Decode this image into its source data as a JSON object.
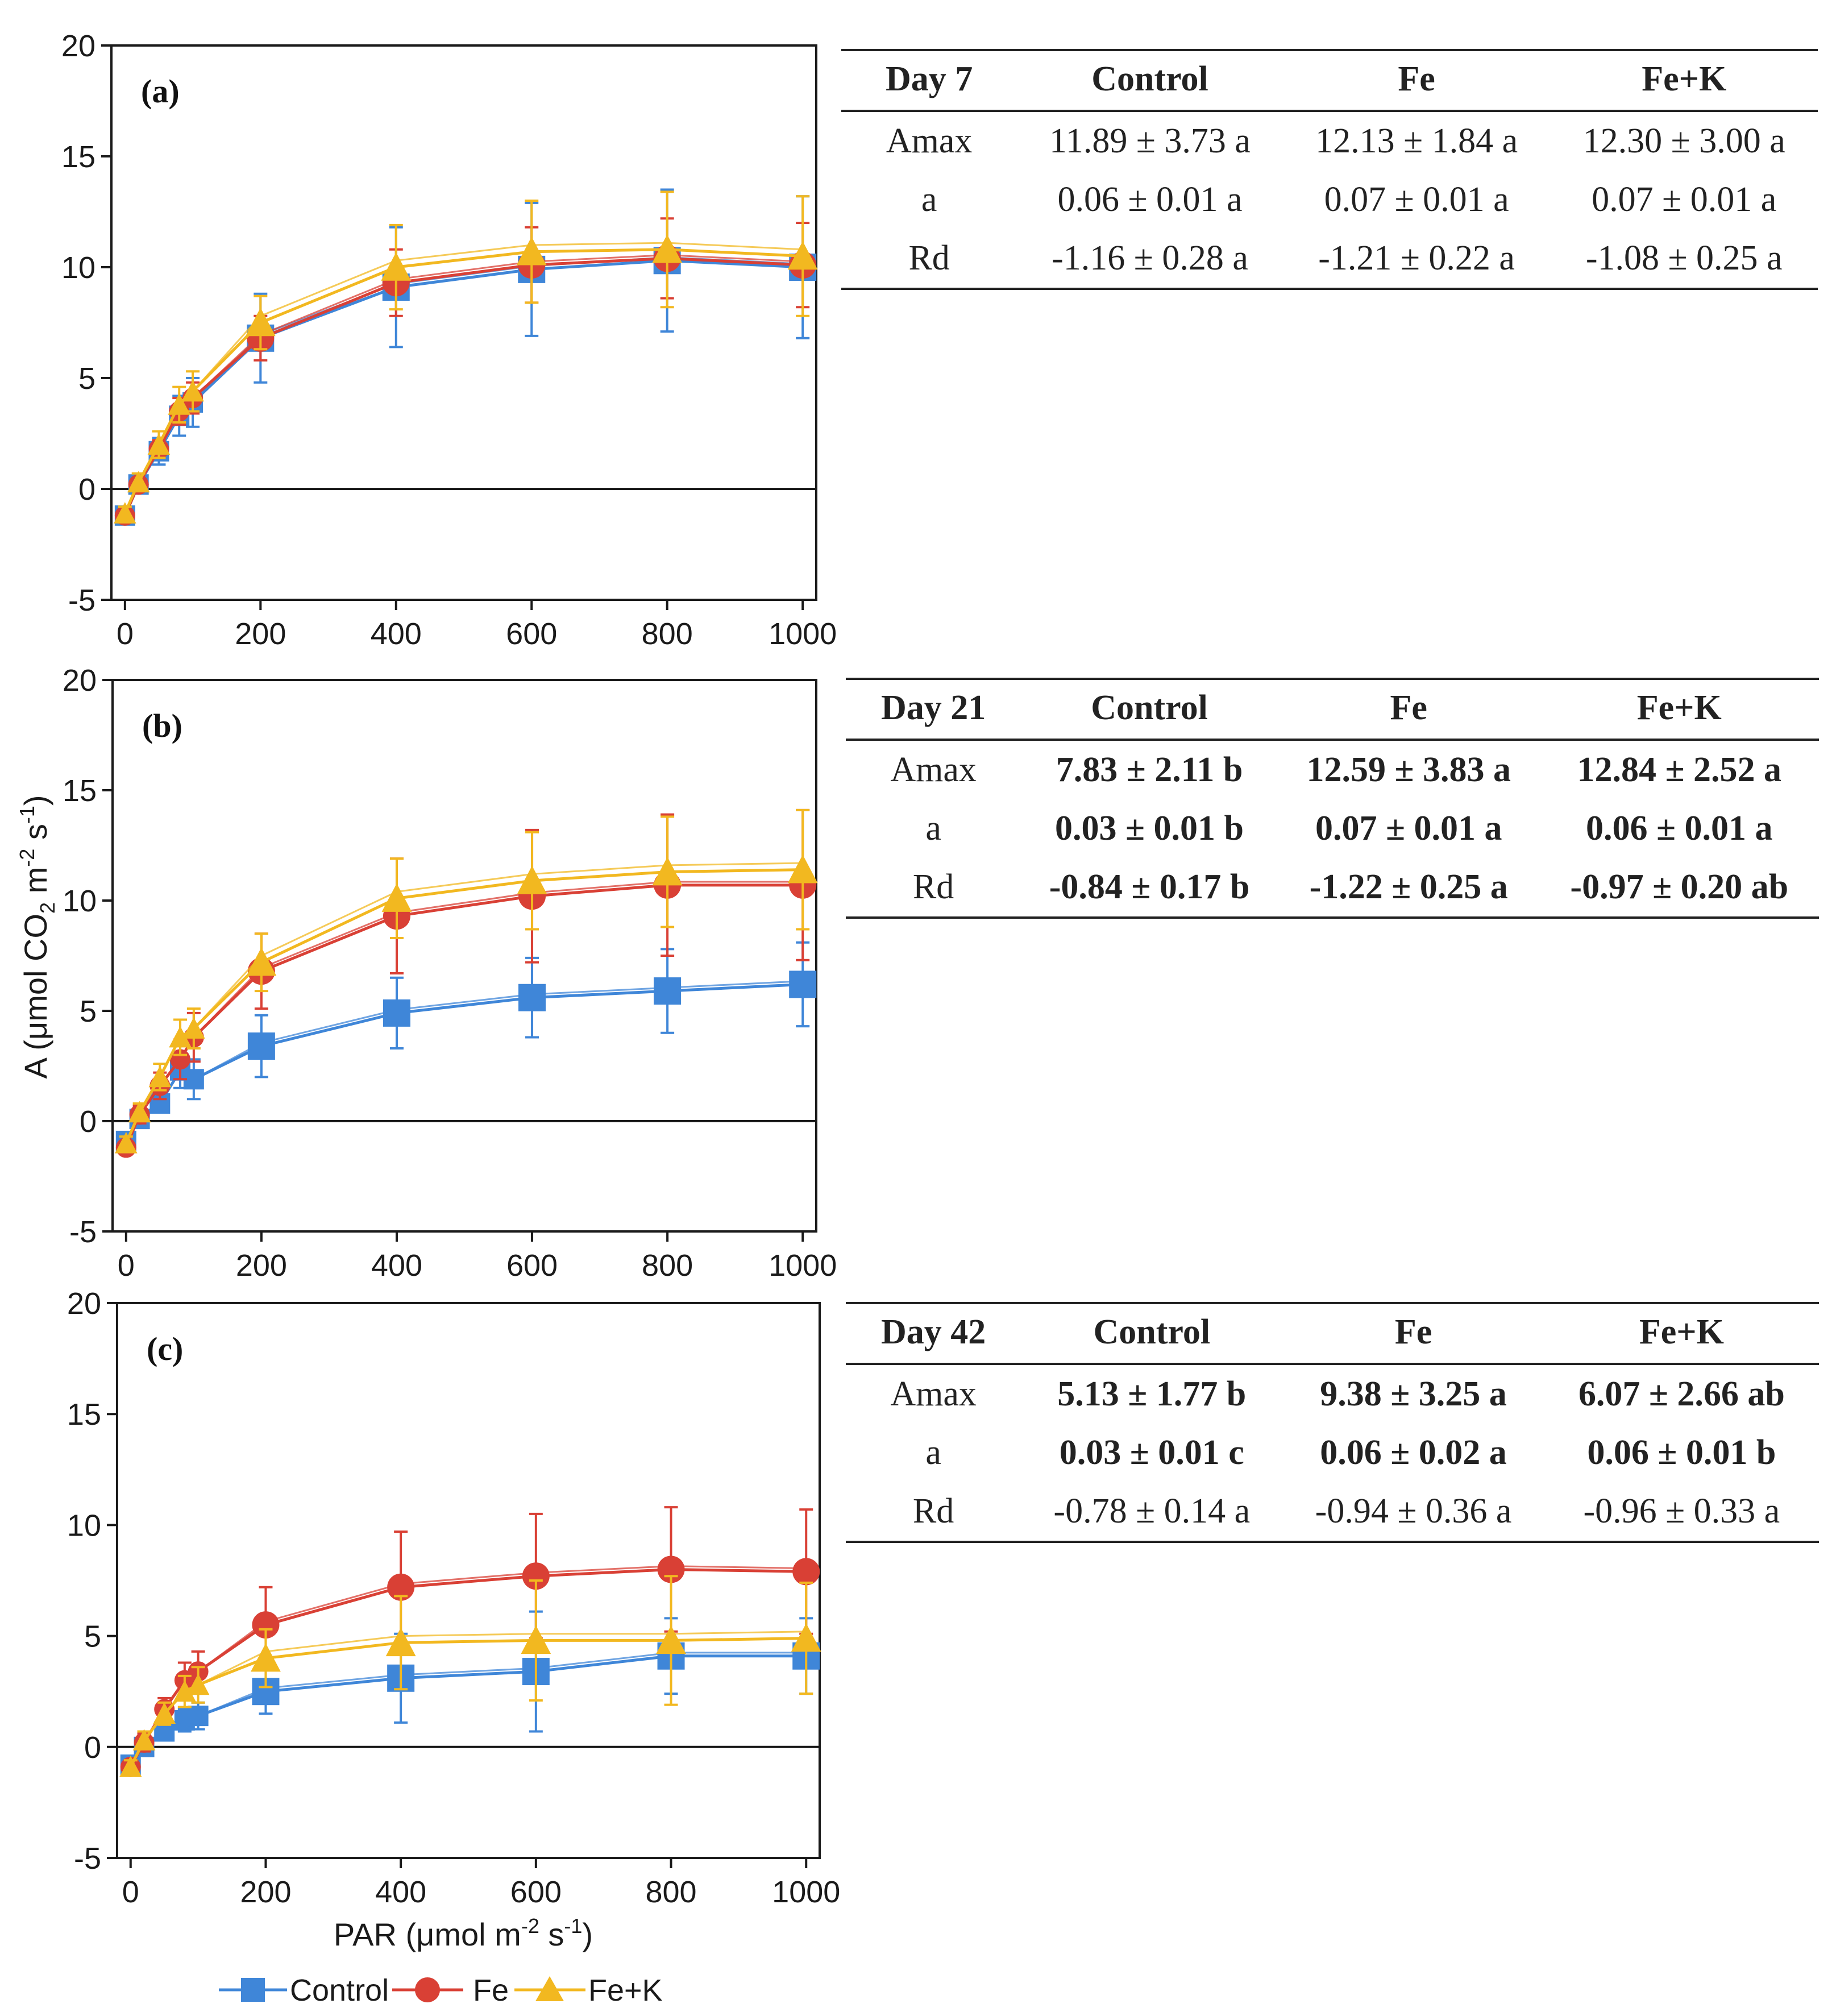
{
  "colors": {
    "control": "#3f86d8",
    "fe": "#d94035",
    "fek": "#f2b820",
    "axis": "#1a1a1a"
  },
  "chart_data": [
    {
      "type": "line",
      "panel_label": "(a)",
      "xlim": [
        -20,
        1020
      ],
      "ylim": [
        -5,
        20
      ],
      "x_ticks": [
        "0",
        "200",
        "400",
        "600",
        "800",
        "1000"
      ],
      "y_ticks": [
        "-5",
        "0",
        "5",
        "10",
        "15",
        "20"
      ],
      "x": [
        0,
        20,
        50,
        80,
        100,
        200,
        400,
        600,
        800,
        1000
      ],
      "series": [
        {
          "name": "Control",
          "values": [
            -1.2,
            0.2,
            1.7,
            3.3,
            3.9,
            6.8,
            9.1,
            9.9,
            10.3,
            10.0
          ],
          "errors": [
            0.3,
            0.4,
            0.6,
            0.9,
            1.1,
            2.0,
            2.7,
            3.0,
            3.2,
            3.2
          ]
        },
        {
          "name": "Fe",
          "values": [
            -1.2,
            0.2,
            1.8,
            3.5,
            4.1,
            6.8,
            9.3,
            10.1,
            10.4,
            10.1
          ],
          "errors": [
            0.2,
            0.3,
            0.4,
            0.6,
            0.7,
            1.0,
            1.5,
            1.7,
            1.8,
            1.9
          ]
        },
        {
          "name": "Fe+K",
          "values": [
            -1.1,
            0.3,
            2.0,
            3.8,
            4.4,
            7.5,
            10.0,
            10.7,
            10.8,
            10.5
          ],
          "errors": [
            0.3,
            0.4,
            0.6,
            0.8,
            0.9,
            1.2,
            1.9,
            2.3,
            2.6,
            2.7
          ]
        }
      ],
      "table": {
        "headers": [
          "Day 7",
          "Control",
          "Fe",
          "Fe+K"
        ],
        "rows": [
          [
            "Amax",
            "11.89 ± 3.73 a",
            "12.13 ± 1.84 a",
            "12.30 ± 3.00 a"
          ],
          [
            "a",
            "0.06 ± 0.01 a",
            "0.07 ± 0.01 a",
            "0.07 ± 0.01 a"
          ],
          [
            "Rd",
            "-1.16 ± 0.28 a",
            "-1.21 ± 0.22 a",
            "-1.08 ± 0.25 a"
          ]
        ]
      }
    },
    {
      "type": "line",
      "panel_label": "(b)",
      "xlim": [
        -20,
        1020
      ],
      "ylim": [
        -5,
        20
      ],
      "x_ticks": [
        "0",
        "200",
        "400",
        "600",
        "800",
        "1000"
      ],
      "y_ticks": [
        "-5",
        "0",
        "5",
        "10",
        "15",
        "20"
      ],
      "ylabel": "A (μmol CO2 m-2 s-1)",
      "x": [
        0,
        20,
        50,
        80,
        100,
        200,
        400,
        600,
        800,
        1000
      ],
      "series": [
        {
          "name": "Control",
          "values": [
            -0.9,
            0.1,
            0.8,
            2.3,
            1.9,
            3.4,
            4.9,
            5.6,
            5.9,
            6.2
          ],
          "errors": [
            0.2,
            0.3,
            0.4,
            0.8,
            0.9,
            1.4,
            1.6,
            1.8,
            1.9,
            1.9
          ]
        },
        {
          "name": "Fe",
          "values": [
            -1.2,
            0.3,
            1.6,
            2.8,
            3.8,
            6.8,
            9.3,
            10.2,
            10.7,
            10.7
          ],
          "errors": [
            0.3,
            0.4,
            0.6,
            0.9,
            1.1,
            1.7,
            2.6,
            3.0,
            3.2,
            3.4
          ]
        },
        {
          "name": "Fe+K",
          "values": [
            -1.0,
            0.4,
            2.0,
            3.8,
            4.2,
            7.2,
            10.1,
            10.9,
            11.3,
            11.4
          ],
          "errors": [
            0.3,
            0.4,
            0.6,
            0.8,
            0.9,
            1.3,
            1.8,
            2.2,
            2.5,
            2.7
          ]
        }
      ],
      "table": {
        "headers": [
          "Day 21",
          "Control",
          "Fe",
          "Fe+K"
        ],
        "rows": [
          [
            "Amax",
            "7.83 ± 2.11 b",
            "12.59 ± 3.83 a",
            "12.84 ± 2.52 a"
          ],
          [
            "a",
            "0.03 ± 0.01 b",
            "0.07 ± 0.01 a",
            "0.06 ± 0.01 a"
          ],
          [
            "Rd",
            "-0.84 ± 0.17 b",
            "-1.22 ± 0.25 a",
            "-0.97 ± 0.20 ab"
          ]
        ]
      }
    },
    {
      "type": "line",
      "panel_label": "(c)",
      "xlim": [
        -20,
        1020
      ],
      "ylim": [
        -5,
        20
      ],
      "x_ticks": [
        "0",
        "200",
        "400",
        "600",
        "800",
        "1000"
      ],
      "y_ticks": [
        "-5",
        "0",
        "5",
        "10",
        "15",
        "20"
      ],
      "xlabel": "PAR (μmol m-2 s-1)",
      "x": [
        0,
        20,
        50,
        80,
        100,
        200,
        400,
        600,
        800,
        1000
      ],
      "series": [
        {
          "name": "Control",
          "values": [
            -0.8,
            0.0,
            0.7,
            1.2,
            1.4,
            2.5,
            3.1,
            3.4,
            4.1,
            4.1
          ],
          "errors": [
            0.2,
            0.3,
            0.4,
            0.5,
            0.6,
            1.0,
            2.0,
            2.7,
            1.7,
            1.7
          ]
        },
        {
          "name": "Fe",
          "values": [
            -0.9,
            0.2,
            1.7,
            3.0,
            3.4,
            5.5,
            7.2,
            7.7,
            8.0,
            7.9
          ],
          "errors": [
            0.3,
            0.4,
            0.5,
            0.8,
            0.9,
            1.7,
            2.5,
            2.8,
            2.8,
            2.8
          ]
        },
        {
          "name": "Fe+K",
          "values": [
            -0.9,
            0.3,
            1.5,
            2.5,
            2.8,
            4.0,
            4.7,
            4.8,
            4.8,
            4.9
          ],
          "errors": [
            0.3,
            0.4,
            0.5,
            0.7,
            0.8,
            1.3,
            2.1,
            2.7,
            2.9,
            2.5
          ]
        }
      ],
      "table": {
        "headers": [
          "Day 42",
          "Control",
          "Fe",
          "Fe+K"
        ],
        "rows": [
          [
            "Amax",
            "5.13 ± 1.77 b",
            "9.38 ± 3.25 a",
            "6.07 ± 2.66 ab"
          ],
          [
            "a",
            "0.03 ± 0.01 c",
            "0.06 ± 0.02 a",
            "0.06 ± 0.01 b"
          ],
          [
            "Rd",
            "-0.78 ± 0.14 a",
            "-0.94 ± 0.36 a",
            "-0.96 ± 0.33 a"
          ]
        ]
      }
    }
  ],
  "legend": {
    "items": [
      "Control",
      "Fe",
      "Fe+K"
    ]
  },
  "axis_text": {
    "y_main": "A (μmol CO",
    "y_sub": "2",
    "y_m": " m",
    "y_sup1": "-2",
    "y_s": " s",
    "y_sup2": "-1",
    "y_close": ")",
    "x_main": "PAR (μmol m",
    "x_sup1": "-2",
    "x_s": " s",
    "x_sup2": "-1",
    "x_close": ")"
  }
}
